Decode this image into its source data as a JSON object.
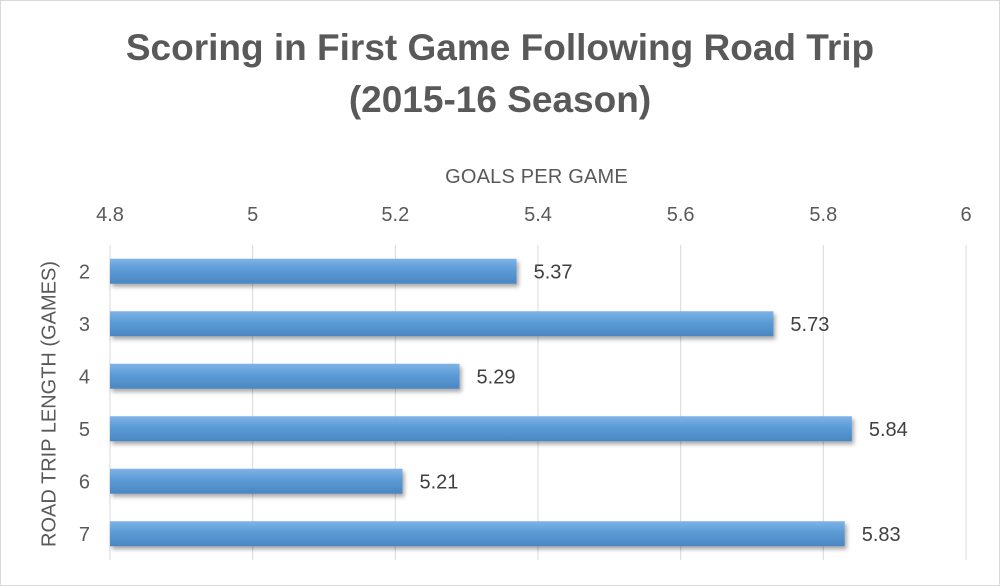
{
  "chart_data": {
    "type": "bar",
    "orientation": "horizontal",
    "title_line1": "Scoring in First Game Following Road Trip",
    "title_line2": "(2015-16 Season)",
    "xlabel": "GOALS PER GAME",
    "ylabel": "ROAD TRIP LENGTH (GAMES)",
    "categories": [
      "2",
      "3",
      "4",
      "5",
      "6",
      "7"
    ],
    "values": [
      5.37,
      5.73,
      5.29,
      5.84,
      5.21,
      5.83
    ],
    "value_labels": [
      "5.37",
      "5.73",
      "5.29",
      "5.84",
      "5.21",
      "5.83"
    ],
    "xlim": [
      4.8,
      6
    ],
    "x_ticks": [
      4.8,
      5,
      5.2,
      5.4,
      5.6,
      5.8,
      6
    ],
    "x_tick_labels": [
      "4.8",
      "5",
      "5.2",
      "5.4",
      "5.6",
      "5.8",
      "6"
    ],
    "x_axis_position": "top",
    "grid": true,
    "legend": "none",
    "bar_color": "#5b9bd5"
  }
}
